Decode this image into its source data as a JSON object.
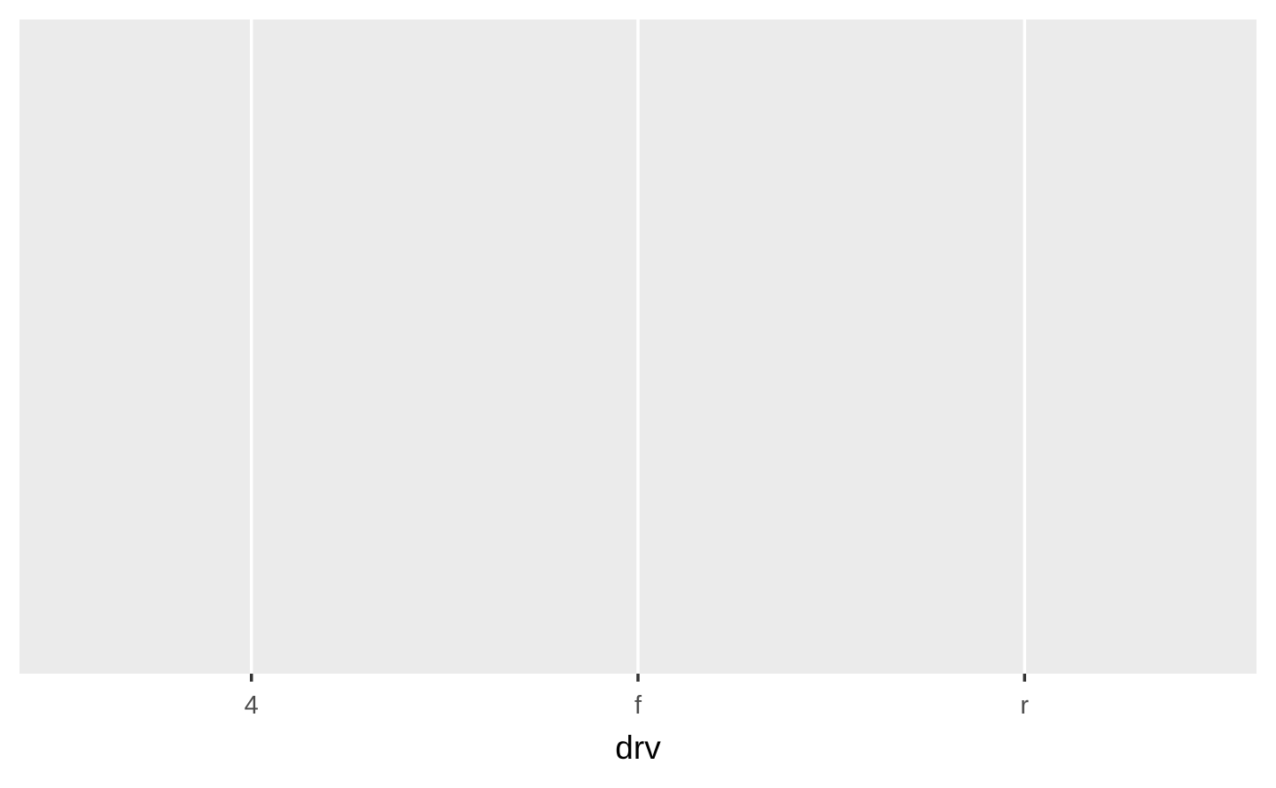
{
  "chart_data": {
    "type": "blank",
    "categories": [
      "4",
      "f",
      "r"
    ],
    "xlabel": "drv",
    "grid": true,
    "background": "#ebebeb",
    "grid_color": "#ffffff"
  }
}
